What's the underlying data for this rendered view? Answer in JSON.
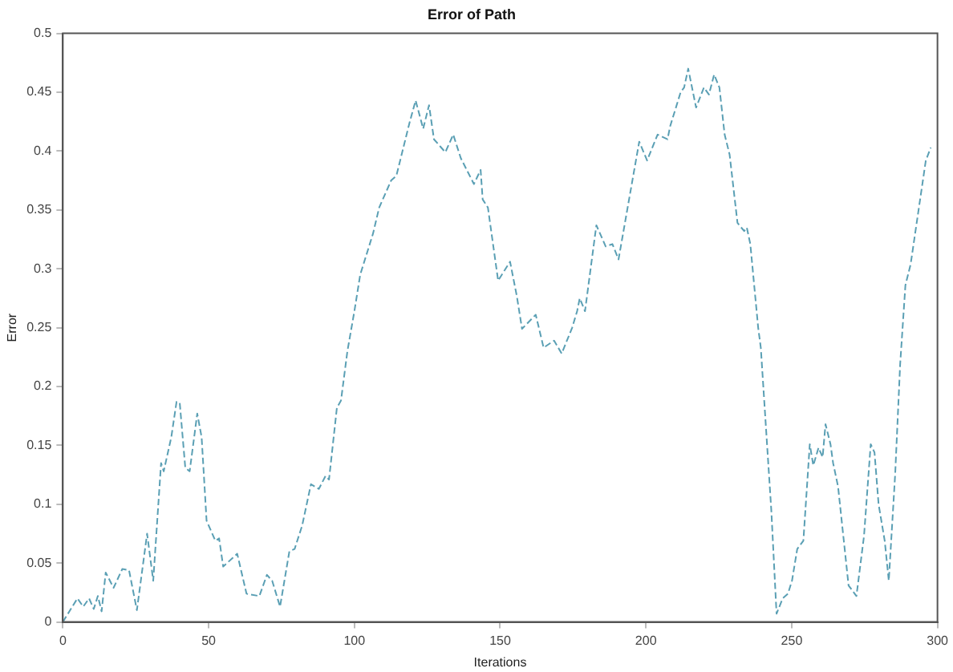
{
  "chart_data": {
    "type": "line",
    "title": "Error of Path",
    "xlabel": "Iterations",
    "ylabel": "Error",
    "xlim": [
      0,
      300
    ],
    "xticks": [
      0,
      50,
      100,
      150,
      200,
      250,
      300
    ],
    "ylim": [
      0,
      0.5
    ],
    "yticks": [
      0,
      0.05,
      0.1,
      0.15,
      0.2,
      0.25,
      0.3,
      0.35,
      0.4,
      0.45,
      0.5
    ],
    "grid": false,
    "legend": false,
    "marker": "none",
    "line_style": "dashed",
    "series": [
      {
        "color": "#5a9fb4",
        "x": [
          0,
          5,
          7,
          9,
          10.6,
          12,
          13.3,
          14.7,
          17.4,
          20.4,
          22.7,
          25.4,
          28.9,
          31,
          33.7,
          34.6,
          37.2,
          39,
          40.1,
          42,
          43.5,
          46.1,
          47.6,
          49.3,
          52.3,
          53.6,
          55,
          59.8,
          63,
          67.4,
          70,
          71.8,
          74.5,
          77.7,
          79.5,
          82.1,
          85.1,
          87.8,
          90.1,
          91.3,
          94,
          95.4,
          97.6,
          100,
          102,
          106.4,
          108.5,
          112.6,
          114.4,
          116.2,
          118.8,
          121,
          123.6,
          125.6,
          127.3,
          131.2,
          133.9,
          136.5,
          141,
          143.3,
          144,
          145.8,
          149.3,
          153.4,
          155.7,
          157.5,
          162.2,
          164.9,
          168.5,
          171.1,
          174.7,
          176.4,
          177.3,
          179.1,
          183,
          186.2,
          188.5,
          190.6,
          195,
          197.7,
          200.4,
          204,
          207.4,
          208.3,
          211.9,
          213.1,
          214.5,
          217.2,
          219.9,
          221.6,
          223.4,
          225.2,
          227,
          228.7,
          231.4,
          233.7,
          234.6,
          235.8,
          238.5,
          239.4,
          243,
          244.8,
          246.9,
          248.7,
          250.1,
          251.9,
          254,
          256.2,
          257.4,
          259.2,
          260.6,
          261.6,
          263.3,
          264.2,
          265.9,
          269.5,
          272.2,
          274.8,
          277.1,
          278.4,
          279.8,
          281.9,
          283.3,
          285.5,
          287.2,
          289,
          290.8,
          296,
          297.7
        ],
        "values": [
          0,
          0.02,
          0.013,
          0.02,
          0.011,
          0.022,
          0.009,
          0.042,
          0.029,
          0.045,
          0.044,
          0.01,
          0.075,
          0.035,
          0.135,
          0.128,
          0.157,
          0.187,
          0.186,
          0.131,
          0.128,
          0.177,
          0.157,
          0.086,
          0.069,
          0.071,
          0.047,
          0.058,
          0.024,
          0.022,
          0.04,
          0.035,
          0.013,
          0.06,
          0.062,
          0.082,
          0.117,
          0.113,
          0.124,
          0.121,
          0.182,
          0.188,
          0.23,
          0.264,
          0.295,
          0.33,
          0.352,
          0.375,
          0.379,
          0.397,
          0.423,
          0.443,
          0.419,
          0.439,
          0.41,
          0.399,
          0.414,
          0.394,
          0.372,
          0.384,
          0.359,
          0.352,
          0.29,
          0.306,
          0.277,
          0.249,
          0.261,
          0.233,
          0.239,
          0.228,
          0.25,
          0.264,
          0.275,
          0.264,
          0.337,
          0.319,
          0.321,
          0.308,
          0.37,
          0.408,
          0.392,
          0.414,
          0.41,
          0.421,
          0.45,
          0.454,
          0.47,
          0.437,
          0.454,
          0.448,
          0.465,
          0.454,
          0.414,
          0.397,
          0.339,
          0.332,
          0.335,
          0.321,
          0.25,
          0.233,
          0.095,
          0.007,
          0.02,
          0.024,
          0.035,
          0.062,
          0.069,
          0.151,
          0.133,
          0.148,
          0.14,
          0.168,
          0.151,
          0.135,
          0.115,
          0.031,
          0.022,
          0.073,
          0.151,
          0.144,
          0.1,
          0.069,
          0.035,
          0.126,
          0.219,
          0.286,
          0.304,
          0.392,
          0.403
        ]
      }
    ]
  }
}
